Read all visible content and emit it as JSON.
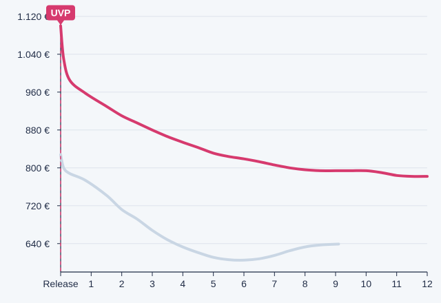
{
  "chart_data": {
    "type": "line",
    "title": "",
    "xlabel": "",
    "ylabel": "",
    "x_ticks": [
      "Release",
      "1",
      "2",
      "3",
      "4",
      "5",
      "6",
      "7",
      "8",
      "9",
      "10",
      "11",
      "12"
    ],
    "xlim": [
      0,
      12
    ],
    "y_ticks": [
      "1.120 €",
      "1.040 €",
      "960 €",
      "880 €",
      "800 €",
      "720 €",
      "640 €"
    ],
    "y_tick_values": [
      1120,
      1040,
      960,
      880,
      800,
      720,
      640
    ],
    "ylim": [
      580,
      1140
    ],
    "grid": true,
    "marker": {
      "label": "UVP",
      "x": 0,
      "value": 1100
    },
    "series": [
      {
        "color": "#d63a6e",
        "x": [
          0,
          0.1,
          0.3,
          0.8,
          1.5,
          2,
          2.5,
          3,
          3.5,
          4,
          4.5,
          5,
          5.5,
          6,
          6.5,
          7,
          7.5,
          8,
          8.5,
          9,
          9.5,
          10,
          10.5,
          11,
          11.5,
          12
        ],
        "values": [
          1100,
          1030,
          985,
          958,
          930,
          910,
          895,
          880,
          866,
          854,
          843,
          831,
          824,
          819,
          813,
          806,
          800,
          796,
          794,
          794,
          794,
          794,
          790,
          784,
          782,
          782
        ]
      },
      {
        "color": "#c9d6e4",
        "x": [
          0,
          0.1,
          0.3,
          0.8,
          1.5,
          2,
          2.5,
          3,
          3.5,
          4,
          4.5,
          5,
          5.5,
          6,
          6.5,
          7,
          7.5,
          8,
          8.5,
          9.1
        ],
        "values": [
          828,
          800,
          788,
          774,
          742,
          712,
          692,
          668,
          648,
          633,
          621,
          611,
          606,
          605,
          608,
          615,
          625,
          633,
          637,
          639
        ]
      }
    ]
  }
}
